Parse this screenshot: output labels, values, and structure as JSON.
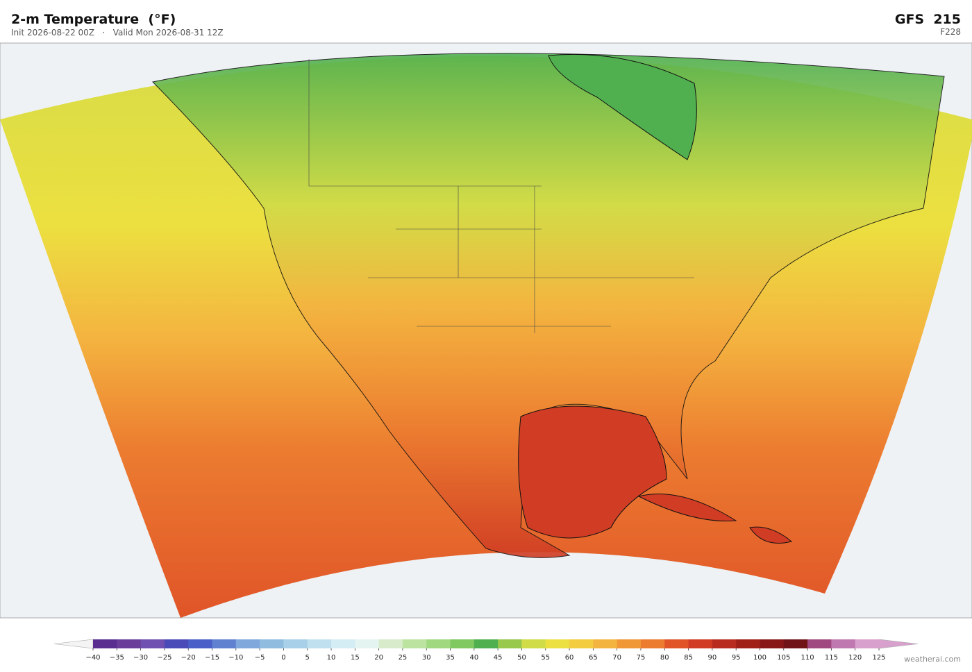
{
  "header": {
    "title": "2-m Temperature  (°F)",
    "subtitle": "Init 2026-08-22 00Z   ·   Valid Mon 2026-08-31 12Z",
    "model": "GFS  215",
    "frame": "F228"
  },
  "colorbar": {
    "ticks": [
      {
        "value": -40,
        "label": "−40"
      },
      {
        "value": -35,
        "label": "−35"
      },
      {
        "value": -30,
        "label": "−30"
      },
      {
        "value": -25,
        "label": "−25"
      },
      {
        "value": -20,
        "label": "−20"
      },
      {
        "value": -15,
        "label": "−15"
      },
      {
        "value": -10,
        "label": "−10"
      },
      {
        "value": -5,
        "label": "−5"
      },
      0,
      5,
      10,
      15,
      20,
      25,
      30,
      35,
      40,
      45,
      50,
      55,
      60,
      65,
      70,
      75,
      80,
      85,
      90,
      95,
      100,
      105,
      110,
      115,
      120,
      125
    ],
    "colors": [
      "#5a2d91",
      "#6a3d9a",
      "#7050b0",
      "#4a4ab8",
      "#4a60c8",
      "#6080d0",
      "#80a8dc",
      "#90bce0",
      "#a8d0e8",
      "#c0e0f0",
      "#d4ecf4",
      "#e4f4f0",
      "#d8eccc",
      "#bce4a0",
      "#a0d880",
      "#80c860",
      "#50b050",
      "#98c84c",
      "#d0dc48",
      "#ece040",
      "#f4cc40",
      "#f4b440",
      "#f09838",
      "#ec7c30",
      "#e05428",
      "#d03c24",
      "#b82c20",
      "#a02018",
      "#881818",
      "#701418",
      "#a04880",
      "#c078b0",
      "#d8a0cc"
    ],
    "under_color": "#f4f4f4",
    "over_color": "#d8a0cc"
  },
  "footer": {
    "credit": "weatherai.com"
  }
}
